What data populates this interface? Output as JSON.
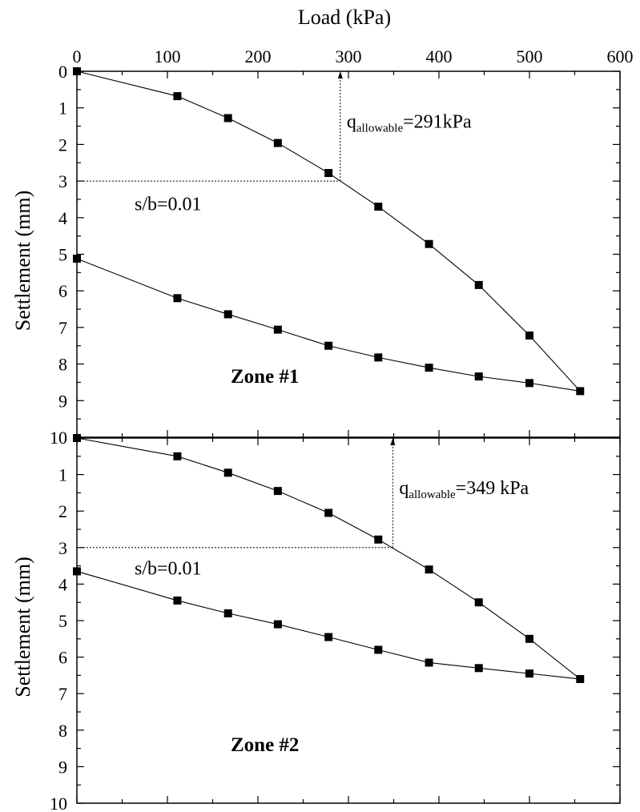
{
  "chart_data": [
    {
      "type": "line",
      "title": "",
      "xlabel": "Load (kPa)",
      "ylabel": "Settlement (mm)",
      "xlim": [
        0,
        600
      ],
      "ylim": [
        10,
        0
      ],
      "x_ticks": [
        "0",
        "100",
        "200",
        "300",
        "400",
        "500",
        "600"
      ],
      "y_ticks": [
        "0",
        "1",
        "2",
        "3",
        "4",
        "5",
        "6",
        "7",
        "8",
        "9",
        "10"
      ],
      "grid": false,
      "series": [
        {
          "marker": "square",
          "x": [
            0,
            111,
            167,
            222,
            278,
            333,
            389,
            444,
            500,
            556,
            500,
            444,
            389,
            333,
            278,
            222,
            167,
            111,
            0
          ],
          "y": [
            0,
            0.68,
            1.28,
            1.96,
            2.78,
            3.7,
            4.72,
            5.84,
            7.22,
            8.74,
            8.52,
            8.34,
            8.1,
            7.82,
            7.5,
            7.06,
            6.64,
            6.2,
            5.12
          ]
        }
      ],
      "annotations": {
        "q_main": "q",
        "q_sub": "allowable",
        "q_rest": "=291kPa",
        "q_value": 291,
        "criterion_label": "s/b=0.01",
        "criterion_settlement": 3,
        "zone_label": "Zone #1"
      }
    },
    {
      "type": "line",
      "title": "",
      "xlabel": "",
      "ylabel": "Settlement (mm)",
      "xlim": [
        0,
        600
      ],
      "ylim": [
        10,
        0
      ],
      "y_ticks": [
        "",
        "1",
        "2",
        "3",
        "4",
        "5",
        "6",
        "7",
        "8",
        "9",
        "10"
      ],
      "grid": false,
      "series": [
        {
          "marker": "square",
          "x": [
            0,
            111,
            167,
            222,
            278,
            333,
            389,
            444,
            500,
            556,
            500,
            444,
            389,
            333,
            278,
            222,
            167,
            111,
            0
          ],
          "y": [
            0,
            0.5,
            0.95,
            1.45,
            2.05,
            2.78,
            3.6,
            4.5,
            5.5,
            6.6,
            6.45,
            6.3,
            6.15,
            5.8,
            5.45,
            5.1,
            4.8,
            4.45,
            3.65
          ]
        }
      ],
      "annotations": {
        "q_main": "q",
        "q_sub": "allowable",
        "q_rest": "=349 kPa",
        "q_value": 349,
        "criterion_label": "s/b=0.01",
        "criterion_settlement": 3,
        "zone_label": "Zone #2"
      }
    }
  ]
}
